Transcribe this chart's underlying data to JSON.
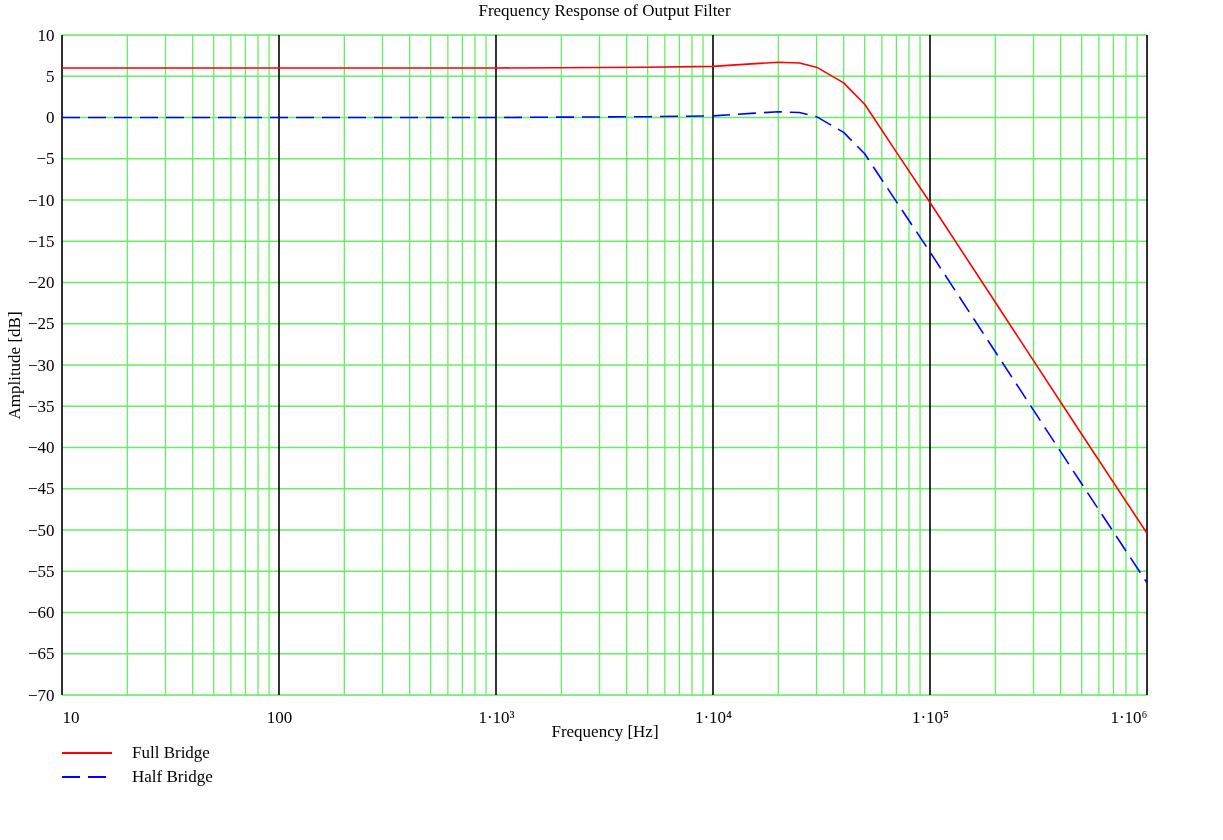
{
  "chart_data": {
    "type": "line",
    "title": "Frequency Response of Output Filter",
    "xlabel": "Frequency [Hz]",
    "ylabel": "Amplitude [dB]",
    "log": "x",
    "grid": true,
    "legend": "bottom left",
    "xlim": [
      10,
      1000000
    ],
    "ylim": [
      -70,
      10
    ],
    "xticks": [
      10,
      100,
      {
        "value": 1000,
        "label": "1·10³"
      },
      {
        "value": 10000,
        "label": "1·10⁴"
      },
      {
        "value": 100000,
        "label": "1·10⁵"
      },
      {
        "value": 1000000,
        "label": "1·10⁶"
      }
    ],
    "yticks": [
      -70,
      -65,
      -60,
      -55,
      -50,
      -45,
      -40,
      -35,
      -30,
      -25,
      -20,
      -15,
      -10,
      -5,
      0,
      5,
      10
    ],
    "x": [
      10,
      100,
      1000,
      5000,
      10000,
      15000,
      20000,
      25000,
      30000,
      40000,
      50000,
      70000,
      100000,
      200000,
      500000,
      1000000
    ],
    "series": [
      {
        "name": "Full Bridge",
        "color": "#ff0000",
        "line_style": "solid",
        "values": [
          6.0,
          6.0,
          6.0,
          6.1,
          6.2,
          6.5,
          6.7,
          6.6,
          6.1,
          4.2,
          1.6,
          -4.2,
          -10.3,
          -22.4,
          -38.4,
          -50.4
        ]
      },
      {
        "name": "Half Bridge",
        "color": "#0000ff",
        "line_style": "dashed",
        "values": [
          0.0,
          0.0,
          0.0,
          0.1,
          0.2,
          0.5,
          0.7,
          0.6,
          0.1,
          -1.8,
          -4.4,
          -10.2,
          -16.3,
          -28.4,
          -44.4,
          -56.4
        ]
      }
    ]
  }
}
